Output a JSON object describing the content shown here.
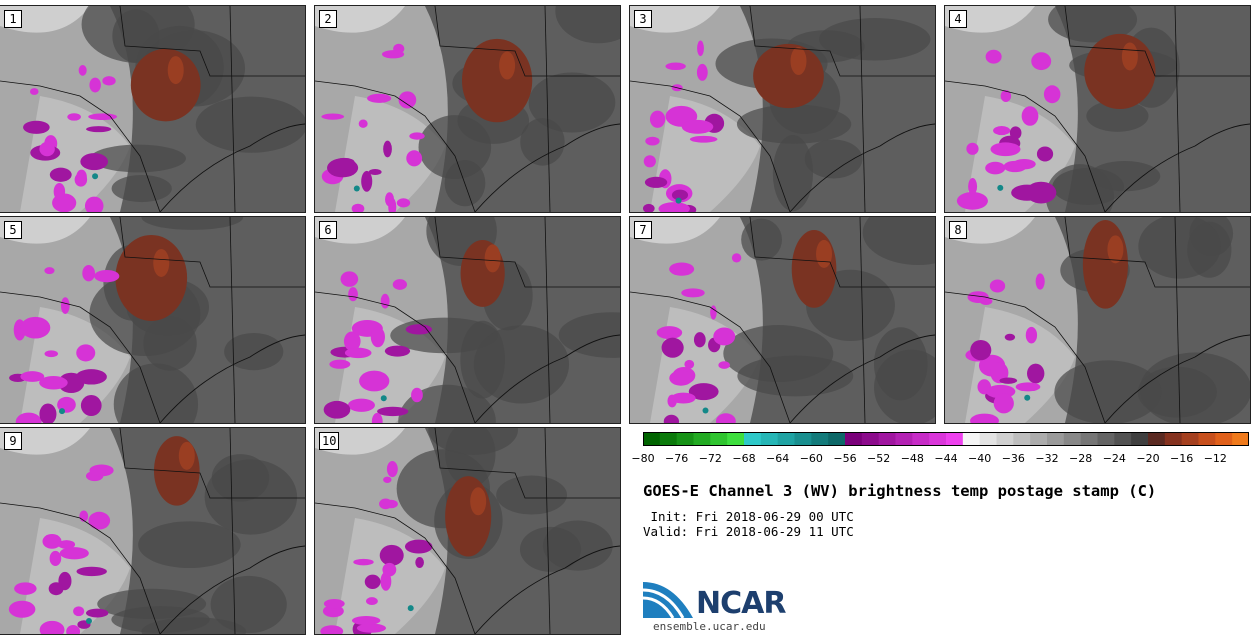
{
  "chart_data": {
    "type": "heatmap",
    "title": "GOES-E Channel 3 (WV) brightness temp postage stamp (C)",
    "init": "Init: Fri 2018-06-29 00 UTC",
    "valid": "Valid: Fri 2018-06-29 11 UTC",
    "colorbar": {
      "min": -80,
      "max": -10,
      "step": 2,
      "tick_labels": [
        "−80",
        "−76",
        "−72",
        "−68",
        "−64",
        "−60",
        "−56",
        "−52",
        "−48",
        "−44",
        "−40",
        "−36",
        "−32",
        "−28",
        "−24",
        "−20",
        "−16",
        "−12"
      ],
      "colors": [
        "#006400",
        "#0b7a0b",
        "#169216",
        "#22aa22",
        "#2fc42f",
        "#3ede3e",
        "#2ec9c9",
        "#26b6b6",
        "#1fa3a3",
        "#198f8f",
        "#137b7b",
        "#0d6868",
        "#7a007a",
        "#8c0b8c",
        "#a016a0",
        "#b321b3",
        "#c72cc7",
        "#da36da",
        "#ee41ee",
        "#f5f5f5",
        "#e3e3e3",
        "#d0d0d0",
        "#bebebe",
        "#acacac",
        "#9a9a9a",
        "#888888",
        "#767676",
        "#646464",
        "#525252",
        "#404040",
        "#5b2a22",
        "#85321f",
        "#a5401f",
        "#c74f1c",
        "#e0601a",
        "#ef7a1c"
      ]
    },
    "members": [
      "1",
      "2",
      "3",
      "4",
      "5",
      "6",
      "7",
      "8",
      "9",
      "10"
    ]
  },
  "branding": {
    "logo": "NCAR",
    "url": "ensemble.ucar.edu"
  }
}
